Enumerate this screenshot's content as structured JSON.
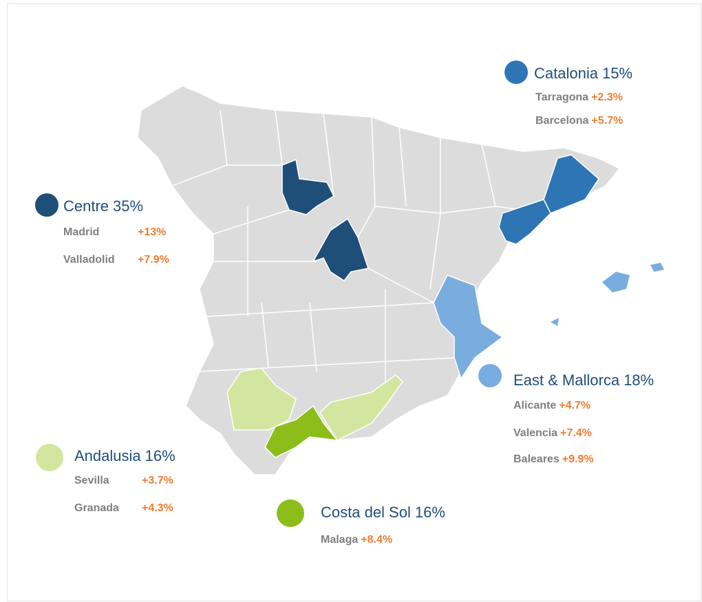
{
  "regions": [
    {
      "name": "Catalonia",
      "share": "15%",
      "color": "#2e75b6",
      "cities": [
        {
          "name": "Tarragona",
          "growth": "+2.3%"
        },
        {
          "name": "Barcelona",
          "growth": "+5.7%"
        }
      ]
    },
    {
      "name": "Centre",
      "share": "35%",
      "color": "#1f4e79",
      "cities": [
        {
          "name": "Madrid",
          "growth": "+13%"
        },
        {
          "name": "Valladolid",
          "growth": "+7.9%"
        }
      ]
    },
    {
      "name": "East & Mallorca",
      "share": "18%",
      "color": "#7aaddf",
      "cities": [
        {
          "name": "Alicante",
          "growth": "+4.7%"
        },
        {
          "name": "Valencia",
          "growth": "+7.4%"
        },
        {
          "name": "Baleares",
          "growth": "+9.9%"
        }
      ]
    },
    {
      "name": "Andalusia",
      "share": "16%",
      "color": "#d3e6a0",
      "cities": [
        {
          "name": "Sevilla",
          "growth": "+3.7%"
        },
        {
          "name": "Granada",
          "growth": "+4.3%"
        }
      ]
    },
    {
      "name": "Costa del Sol",
      "share": "16%",
      "color": "#8cbd1a",
      "cities": [
        {
          "name": "Malaga",
          "growth": "+8.4%"
        }
      ]
    }
  ]
}
